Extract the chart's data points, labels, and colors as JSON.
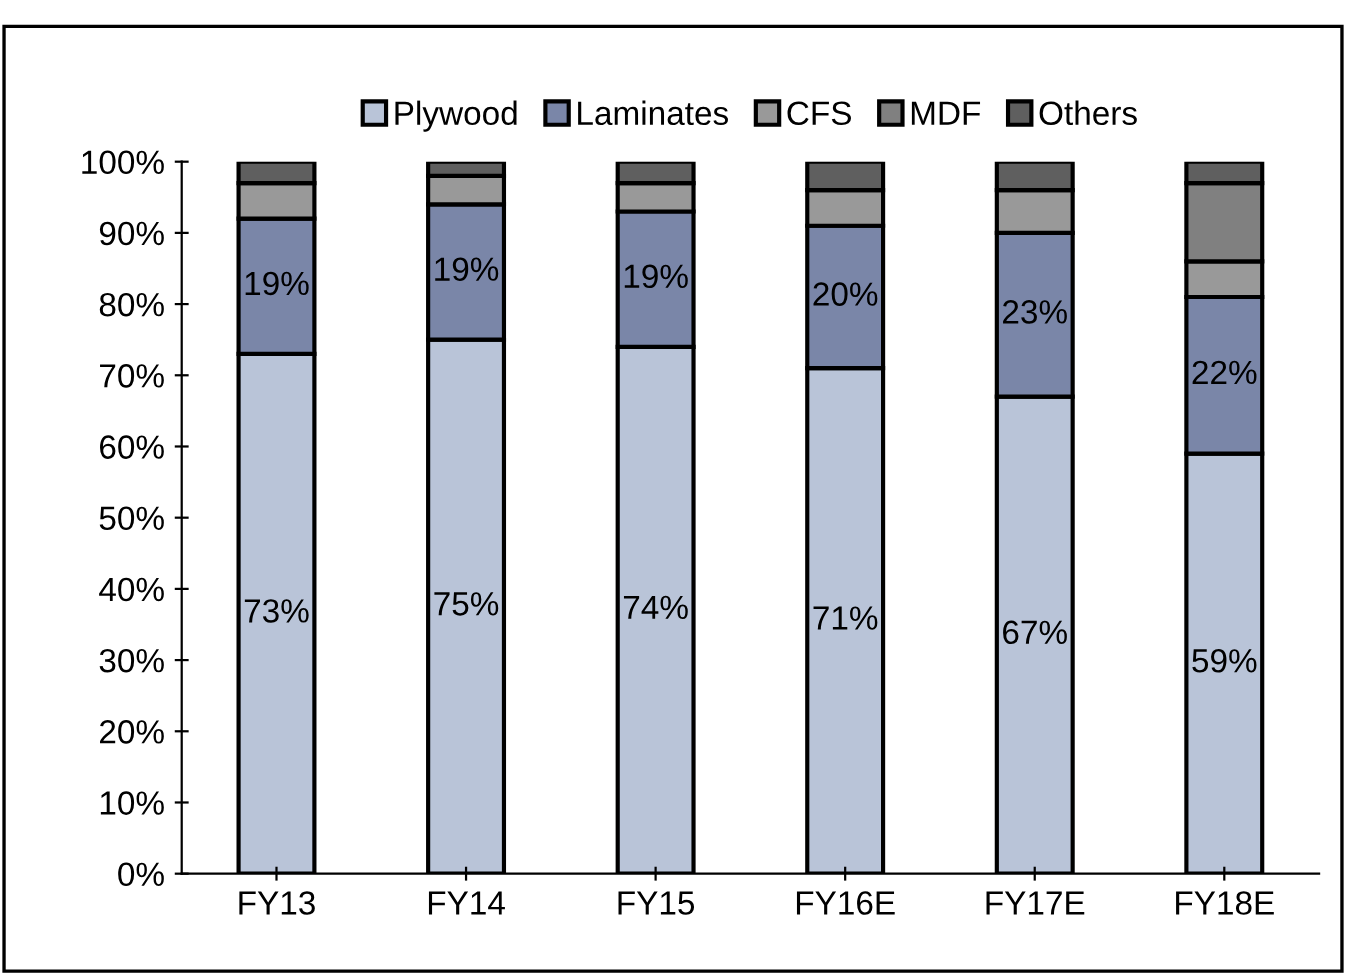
{
  "chart_data": {
    "type": "bar",
    "stacked": true,
    "categories": [
      "FY13",
      "FY14",
      "FY15",
      "FY16E",
      "FY17E",
      "FY18E"
    ],
    "series": [
      {
        "name": "Plywood",
        "color": "#b9c4d8",
        "values": [
          73,
          75,
          74,
          71,
          67,
          59
        ],
        "value_labels": [
          "73%",
          "75%",
          "74%",
          "71%",
          "67%",
          "59%"
        ]
      },
      {
        "name": "Laminates",
        "color": "#7a86a8",
        "values": [
          19,
          19,
          19,
          20,
          23,
          22
        ],
        "value_labels": [
          "19%",
          "19%",
          "19%",
          "20%",
          "23%",
          "22%"
        ]
      },
      {
        "name": "CFS",
        "color": "#999999",
        "values": [
          5,
          4,
          4,
          5,
          6,
          5
        ]
      },
      {
        "name": "MDF",
        "color": "#808080",
        "values": [
          null,
          null,
          null,
          null,
          null,
          11
        ]
      },
      {
        "name": "Others",
        "color": "#5f5f5f",
        "values": [
          3,
          2,
          3,
          4,
          4,
          3
        ]
      }
    ],
    "ylim": [
      0,
      100
    ],
    "yticks": [
      {
        "value": 0,
        "label": "0%"
      },
      {
        "value": 10,
        "label": "10%"
      },
      {
        "value": 20,
        "label": "20%"
      },
      {
        "value": 30,
        "label": "30%"
      },
      {
        "value": 40,
        "label": "40%"
      },
      {
        "value": 50,
        "label": "50%"
      },
      {
        "value": 60,
        "label": "60%"
      },
      {
        "value": 70,
        "label": "70%"
      },
      {
        "value": 80,
        "label": "80%"
      },
      {
        "value": 90,
        "label": "90%"
      },
      {
        "value": 100,
        "label": "100%"
      }
    ],
    "grid": false,
    "legend": "top"
  }
}
